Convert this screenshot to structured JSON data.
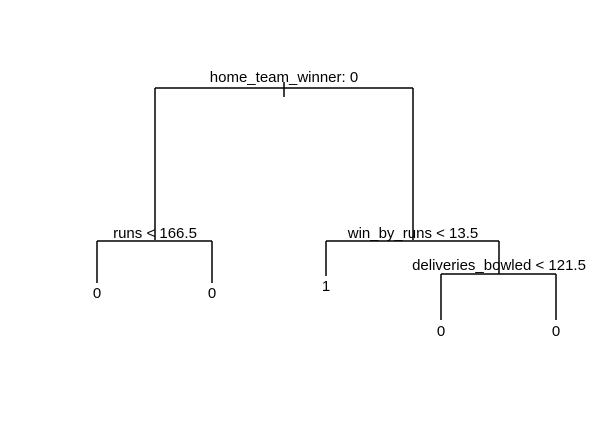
{
  "tree": {
    "root_split": "home_team_winner: 0",
    "left_split": "runs < 166.5",
    "right_split": "win_by_runs < 13.5",
    "deep_split": "deliveries_bowled < 121.5",
    "leaves": {
      "runs_left": "0",
      "runs_right": "0",
      "wbr_left": "1",
      "deliv_left": "0",
      "deliv_right": "0"
    }
  }
}
